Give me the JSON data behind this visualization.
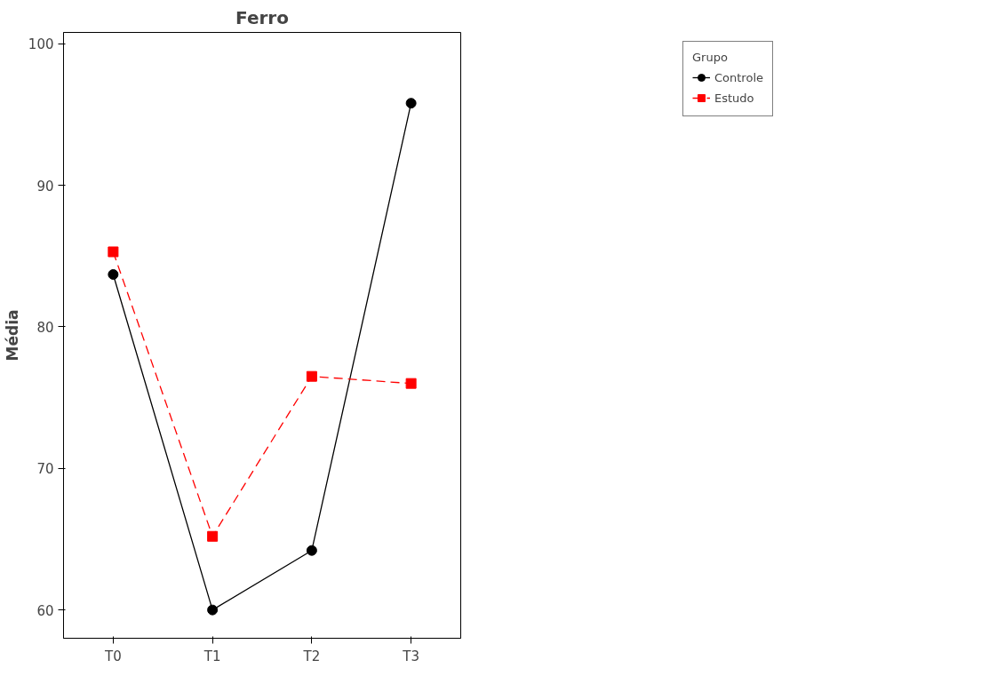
{
  "chart_data": {
    "type": "line",
    "title": "Ferro",
    "ylabel": "Média",
    "legend_title": "Grupo",
    "categories": [
      "T0",
      "T1",
      "T2",
      "T3"
    ],
    "series": [
      {
        "name": "Controle",
        "color": "#000000",
        "values": [
          83.7,
          60.0,
          64.2,
          95.8
        ],
        "marker": "circle",
        "line_style": "solid"
      },
      {
        "name": "Estudo",
        "color": "#ff0000",
        "values": [
          85.3,
          65.2,
          76.5,
          76.0
        ],
        "marker": "square",
        "line_style": "dashed"
      }
    ],
    "ylim": [
      58.0,
      100.8
    ],
    "yticks": [
      60,
      70,
      80,
      90,
      100
    ],
    "grid": false,
    "legend": "top right"
  }
}
